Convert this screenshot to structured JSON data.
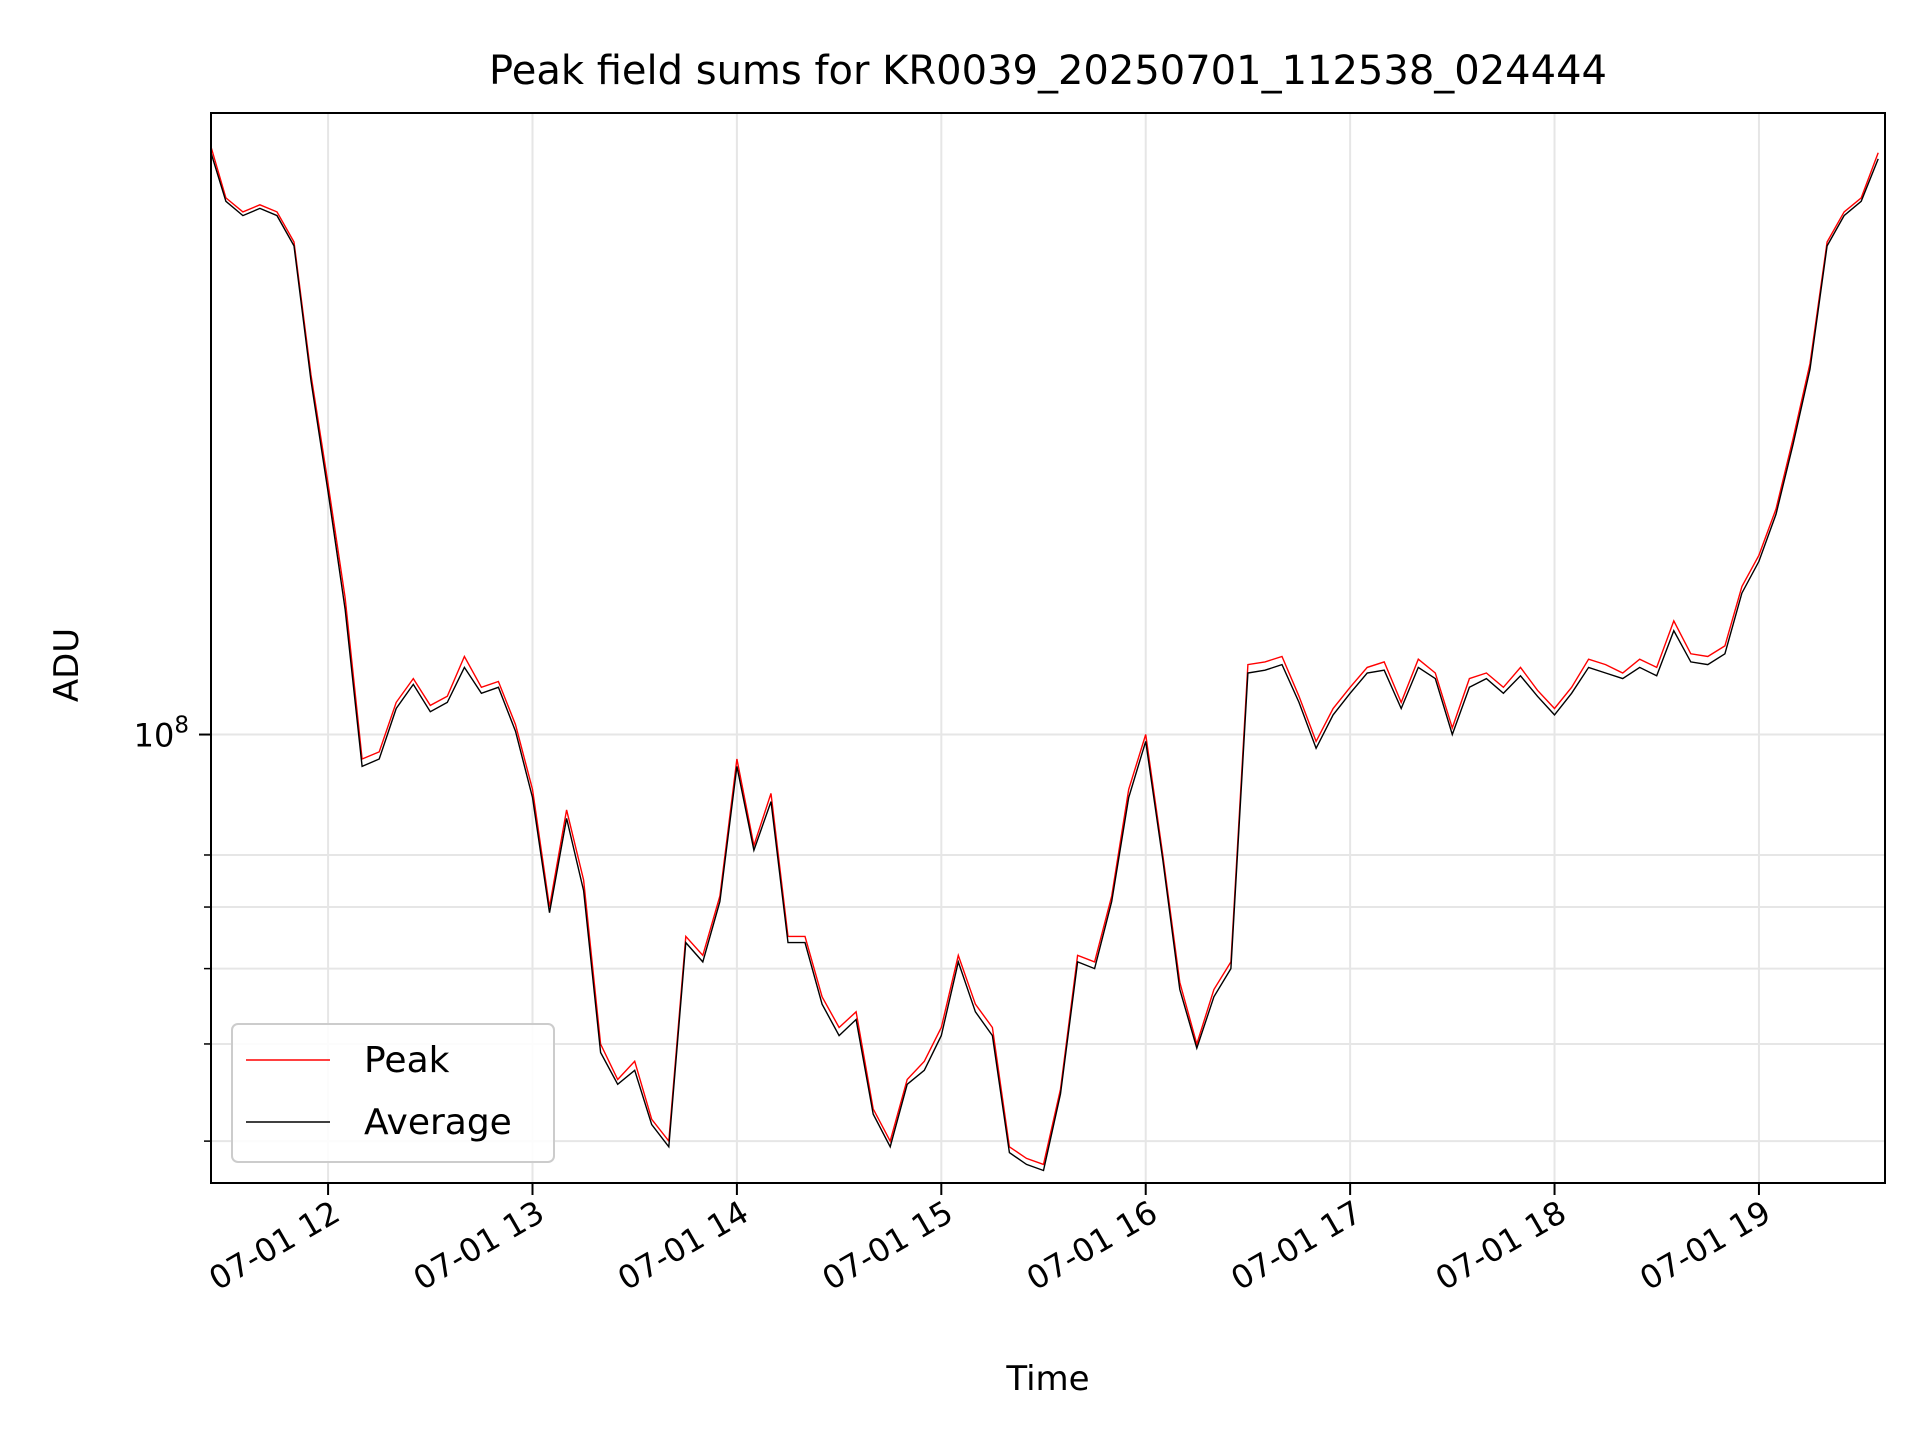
{
  "chart_data": {
    "type": "line",
    "title": "Peak field sums for KR0039_20250701_112538_024444",
    "xlabel": "Time",
    "ylabel": "ADU",
    "y_scale": "log",
    "xlim": [
      "2025-07-01T11:25:38",
      "2025-07-01T19:37:00"
    ],
    "ylim": [
      26500000,
      630000000
    ],
    "x_ticks": [
      {
        "time": "2025-07-01T12:00",
        "label": "07-01 12"
      },
      {
        "time": "2025-07-01T13:00",
        "label": "07-01 13"
      },
      {
        "time": "2025-07-01T14:00",
        "label": "07-01 14"
      },
      {
        "time": "2025-07-01T15:00",
        "label": "07-01 15"
      },
      {
        "time": "2025-07-01T16:00",
        "label": "07-01 16"
      },
      {
        "time": "2025-07-01T17:00",
        "label": "07-01 17"
      },
      {
        "time": "2025-07-01T18:00",
        "label": "07-01 18"
      },
      {
        "time": "2025-07-01T19:00",
        "label": "07-01 19"
      }
    ],
    "y_major_ticks": [
      {
        "value": 100000000,
        "label": "10",
        "exponent": "8"
      }
    ],
    "y_minor_ticks": [
      30000000,
      40000000,
      50000000,
      60000000,
      70000000
    ],
    "grid": true,
    "legend": "lower-left",
    "x": [
      "11:25",
      "11:30",
      "11:35",
      "11:40",
      "11:45",
      "11:50",
      "11:55",
      "12:00",
      "12:05",
      "12:10",
      "12:15",
      "12:20",
      "12:25",
      "12:30",
      "12:35",
      "12:40",
      "12:45",
      "12:50",
      "12:55",
      "13:00",
      "13:05",
      "13:10",
      "13:15",
      "13:20",
      "13:25",
      "13:30",
      "13:35",
      "13:40",
      "13:45",
      "13:50",
      "13:55",
      "14:00",
      "14:05",
      "14:10",
      "14:15",
      "14:20",
      "14:25",
      "14:30",
      "14:35",
      "14:40",
      "14:45",
      "14:50",
      "14:55",
      "15:00",
      "15:05",
      "15:10",
      "15:15",
      "15:20",
      "15:25",
      "15:30",
      "15:35",
      "15:40",
      "15:45",
      "15:50",
      "15:55",
      "16:00",
      "16:05",
      "16:10",
      "16:15",
      "16:20",
      "16:25",
      "16:30",
      "16:35",
      "16:40",
      "16:45",
      "16:50",
      "16:55",
      "17:00",
      "17:05",
      "17:10",
      "17:15",
      "17:20",
      "17:25",
      "17:30",
      "17:35",
      "17:40",
      "17:45",
      "17:50",
      "17:55",
      "18:00",
      "18:05",
      "18:10",
      "18:15",
      "18:20",
      "18:25",
      "18:30",
      "18:35",
      "18:40",
      "18:45",
      "18:50",
      "18:55",
      "19:00",
      "19:05",
      "19:10",
      "19:15",
      "19:20",
      "19:25",
      "19:30",
      "19:35"
    ],
    "series": [
      {
        "name": "Peak",
        "color": "#ff0000",
        "values": [
          570000000,
          490000000,
          470000000,
          480000000,
          470000000,
          430000000,
          290000000,
          210000000,
          150000000,
          93000000,
          95000000,
          110000000,
          118000000,
          109000000,
          112000000,
          126000000,
          115000000,
          117000000,
          103000000,
          85000000,
          60000000,
          80000000,
          65000000,
          40000000,
          36000000,
          38000000,
          32000000,
          30000000,
          55000000,
          52000000,
          62000000,
          93000000,
          72000000,
          84000000,
          55000000,
          55000000,
          46000000,
          42000000,
          44000000,
          33000000,
          30000000,
          36000000,
          38000000,
          42000000,
          52000000,
          45000000,
          42000000,
          29500000,
          28500000,
          28000000,
          35000000,
          52000000,
          51000000,
          62000000,
          85000000,
          100000000,
          70000000,
          48000000,
          40000000,
          47000000,
          51000000,
          123000000,
          124000000,
          126000000,
          112000000,
          98000000,
          108000000,
          115000000,
          122000000,
          124000000,
          110000000,
          125000000,
          120000000,
          102000000,
          118000000,
          120000000,
          115000000,
          122000000,
          114000000,
          108000000,
          115000000,
          125000000,
          123000000,
          120000000,
          125000000,
          122000000,
          140000000,
          127000000,
          126000000,
          130000000,
          155000000,
          170000000,
          195000000,
          240000000,
          300000000,
          430000000,
          470000000,
          490000000,
          560000000
        ]
      },
      {
        "name": "Average",
        "color": "#000000",
        "values": [
          560000000,
          485000000,
          465000000,
          475000000,
          465000000,
          425000000,
          285000000,
          205000000,
          145000000,
          91000000,
          93000000,
          108000000,
          116000000,
          107000000,
          110000000,
          122000000,
          113000000,
          115000000,
          101000000,
          83000000,
          59000000,
          78000000,
          63000000,
          39000000,
          35500000,
          37000000,
          31500000,
          29500000,
          54000000,
          51000000,
          61000000,
          91000000,
          71000000,
          82000000,
          54000000,
          54000000,
          45000000,
          41000000,
          43000000,
          32500000,
          29500000,
          35500000,
          37000000,
          41000000,
          51000000,
          44000000,
          41000000,
          29000000,
          28000000,
          27500000,
          34500000,
          51000000,
          50000000,
          61000000,
          83000000,
          98000000,
          69000000,
          47000000,
          39500000,
          46000000,
          50000000,
          120000000,
          121000000,
          123000000,
          110000000,
          96000000,
          106000000,
          113000000,
          120000000,
          121000000,
          108000000,
          122000000,
          118000000,
          100000000,
          115000000,
          118000000,
          113000000,
          119000000,
          112000000,
          106000000,
          113000000,
          122000000,
          120000000,
          118000000,
          122000000,
          119000000,
          136000000,
          124000000,
          123000000,
          127000000,
          152000000,
          167000000,
          192000000,
          236000000,
          295000000,
          425000000,
          465000000,
          485000000,
          550000000
        ]
      }
    ]
  }
}
